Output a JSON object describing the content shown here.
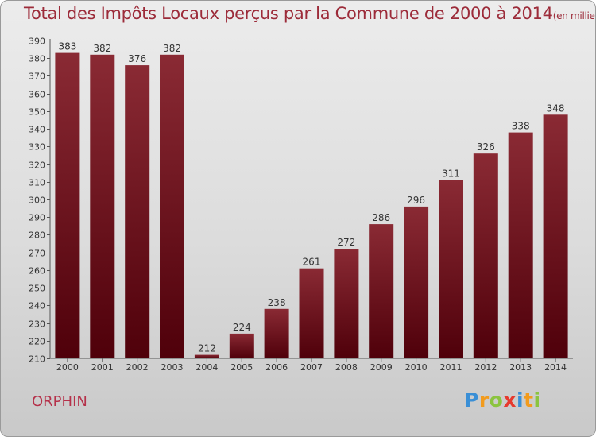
{
  "chart_data": {
    "type": "bar",
    "title": "Total des Impôts Locaux perçus par la Commune de 2000 à 2014",
    "unit_label": "(en milliers d'€)",
    "categories": [
      "2000",
      "2001",
      "2002",
      "2003",
      "2004",
      "2005",
      "2006",
      "2007",
      "2008",
      "2009",
      "2010",
      "2011",
      "2012",
      "2013",
      "2014"
    ],
    "values": [
      383,
      382,
      376,
      382,
      212,
      224,
      238,
      261,
      272,
      286,
      296,
      311,
      326,
      338,
      348
    ],
    "ylim": [
      210,
      390
    ],
    "yticks": [
      210,
      220,
      230,
      240,
      250,
      260,
      270,
      280,
      290,
      300,
      310,
      320,
      330,
      340,
      350,
      360,
      370,
      380,
      390
    ],
    "xlabel": "",
    "ylabel": "",
    "grid": false,
    "bar_color_top": "#8a2a34",
    "bar_color_bottom": "#4f000a"
  },
  "footer": {
    "commune": "ORPHIN",
    "brand": "Proxiti",
    "brand_letters": [
      {
        "ch": "P",
        "color": "#3a8fd6"
      },
      {
        "ch": "r",
        "color": "#f29b1d"
      },
      {
        "ch": "o",
        "color": "#8bc43f"
      },
      {
        "ch": "x",
        "color": "#e63a2e"
      },
      {
        "ch": "i",
        "color": "#3a8fd6"
      },
      {
        "ch": "t",
        "color": "#f29b1d"
      },
      {
        "ch": "i",
        "color": "#8bc43f"
      }
    ]
  }
}
